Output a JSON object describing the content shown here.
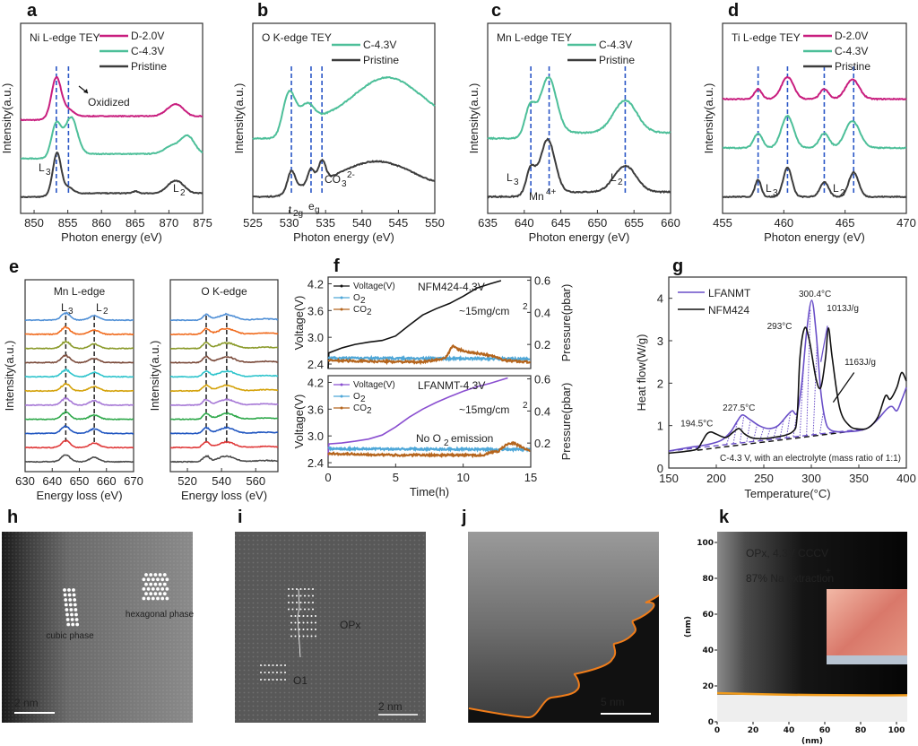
{
  "chart_data": [
    {
      "id": "a",
      "type": "line",
      "panel_label": "a",
      "title": "Ni L-edge TEY",
      "xlabel": "Photon energy (eV)",
      "ylabel": "Intensity(a.u.)",
      "xlim": [
        848,
        875
      ],
      "xticks": [
        850,
        855,
        860,
        865,
        870,
        875
      ],
      "legend": [
        "D-2.0V",
        "C-4.3V",
        "Pristine"
      ],
      "legend_position": "top-right",
      "colors": {
        "D-2.0V": "#c81d7e",
        "C-4.3V": "#4dbf99",
        "Pristine": "#3c3c3c"
      },
      "dashed_lines_x": [
        853.3,
        855.1
      ],
      "annotations": [
        "Oxidized",
        "L3",
        "L2"
      ],
      "series": [
        {
          "name": "D-2.0V",
          "offset": 2.0,
          "peaks": [
            [
              853.3,
              1.0,
              0.7
            ],
            [
              855.0,
              0.18,
              0.8
            ],
            [
              870.3,
              0.18,
              1.0
            ],
            [
              871.5,
              0.2,
              0.9
            ]
          ],
          "edge": [
            852,
            0.1
          ]
        },
        {
          "name": "C-4.3V",
          "offset": 1.0,
          "peaks": [
            [
              853.3,
              0.8,
              0.7
            ],
            [
              855.5,
              0.95,
              0.9
            ],
            [
              870.5,
              0.2,
              1.2
            ],
            [
              872.8,
              0.45,
              1.0
            ]
          ],
          "edge": [
            852.5,
            0.12
          ]
        },
        {
          "name": "Pristine",
          "offset": 0.0,
          "peaks": [
            [
              853.4,
              1.05,
              0.6
            ],
            [
              855.1,
              0.15,
              0.7
            ],
            [
              865.0,
              0.05,
              0.4
            ],
            [
              870.4,
              0.22,
              0.9
            ],
            [
              871.7,
              0.2,
              0.9
            ]
          ],
          "edge": [
            852,
            0.1
          ]
        }
      ]
    },
    {
      "id": "b",
      "type": "line",
      "panel_label": "b",
      "title": "O K-edge TEY",
      "xlabel": "Photon energy (eV)",
      "ylabel": "Intensity(a.u.)",
      "xlim": [
        525,
        550
      ],
      "xticks": [
        525,
        530,
        535,
        540,
        545,
        550
      ],
      "legend": [
        "C-4.3V",
        "Pristine"
      ],
      "legend_position": "top-right",
      "colors": {
        "C-4.3V": "#4dbf99",
        "Pristine": "#3c3c3c"
      },
      "dashed_lines_x": [
        530.3,
        533.0,
        534.5
      ],
      "annotations": [
        "t2g",
        "eg",
        "CO3 2-"
      ],
      "series": [
        {
          "name": "C-4.3V",
          "offset": 1.15,
          "peaks": [
            [
              530.0,
              0.6,
              0.8
            ],
            [
              532.5,
              0.3,
              0.9
            ],
            [
              543.5,
              0.85,
              4.5
            ]
          ],
          "edge": [
            529.0,
            0.35
          ]
        },
        {
          "name": "Pristine",
          "offset": 0.0,
          "peaks": [
            [
              530.3,
              0.35,
              0.5
            ],
            [
              533.0,
              0.3,
              0.45
            ],
            [
              534.5,
              0.4,
              0.5
            ],
            [
              542.0,
              0.55,
              5.0
            ]
          ],
          "edge": [
            529.5,
            0.15
          ]
        }
      ]
    },
    {
      "id": "c",
      "type": "line",
      "panel_label": "c",
      "title": "Mn L-edge TEY",
      "xlabel": "Photon energy (eV)",
      "ylabel": "Intensity(a.u.)",
      "xlim": [
        635,
        660
      ],
      "xticks": [
        635,
        640,
        645,
        650,
        655,
        660
      ],
      "legend": [
        "C-4.3V",
        "Pristine"
      ],
      "legend_position": "top-right",
      "colors": {
        "C-4.3V": "#4dbf99",
        "Pristine": "#3c3c3c"
      },
      "dashed_lines_x": [
        640.9,
        643.4,
        653.8
      ],
      "annotations": [
        "L3",
        "Mn4+",
        "L2"
      ],
      "series": [
        {
          "name": "C-4.3V",
          "offset": 1.0,
          "peaks": [
            [
              640.8,
              0.45,
              0.7
            ],
            [
              643.3,
              0.95,
              1.1
            ],
            [
              653.8,
              0.55,
              1.6
            ]
          ],
          "edge": [
            640,
            0.1
          ]
        },
        {
          "name": "Pristine",
          "offset": 0.0,
          "peaks": [
            [
              640.9,
              0.4,
              0.6
            ],
            [
              643.2,
              0.9,
              1.0
            ],
            [
              653.8,
              0.45,
              1.5
            ]
          ],
          "edge": [
            640,
            0.08
          ]
        }
      ]
    },
    {
      "id": "d",
      "type": "line",
      "panel_label": "d",
      "title": "Ti L-edge TEY",
      "xlabel": "Photon energy (eV)",
      "ylabel": "Intensity(a.u.)",
      "xlim": [
        455,
        470
      ],
      "xticks": [
        455,
        460,
        465,
        470
      ],
      "legend": [
        "D-2.0V",
        "C-4.3V",
        "Pristine"
      ],
      "legend_position": "top-right",
      "colors": {
        "D-2.0V": "#c81d7e",
        "C-4.3V": "#4dbf99",
        "Pristine": "#3c3c3c"
      },
      "dashed_lines_x": [
        457.9,
        460.3,
        463.3,
        465.7
      ],
      "annotations": [
        "L3",
        "L2"
      ],
      "series": [
        {
          "name": "D-2.0V",
          "offset": 2.0,
          "peaks": [
            [
              457.9,
              0.2,
              0.3
            ],
            [
              460.3,
              0.45,
              0.5
            ],
            [
              463.3,
              0.2,
              0.35
            ],
            [
              465.6,
              0.4,
              0.55
            ]
          ],
          "edge": [
            457.5,
            0.0
          ]
        },
        {
          "name": "C-4.3V",
          "offset": 1.0,
          "peaks": [
            [
              457.9,
              0.3,
              0.35
            ],
            [
              460.3,
              0.65,
              0.5
            ],
            [
              463.3,
              0.3,
              0.4
            ],
            [
              465.6,
              0.55,
              0.6
            ]
          ],
          "edge": [
            457.5,
            0.0
          ]
        },
        {
          "name": "Pristine",
          "offset": 0.0,
          "peaks": [
            [
              457.9,
              0.35,
              0.25
            ],
            [
              460.3,
              0.6,
              0.35
            ],
            [
              463.3,
              0.3,
              0.35
            ],
            [
              465.7,
              0.5,
              0.4
            ]
          ],
          "edge": [
            457.5,
            0.0
          ]
        }
      ]
    },
    {
      "id": "e1",
      "type": "line",
      "panel_label": "e",
      "title": "Mn L-edge",
      "xlabel": "Energy loss (eV)",
      "ylabel": "Intensity(a.u.)",
      "xlim": [
        630,
        670
      ],
      "xticks": [
        630,
        640,
        650,
        660,
        670
      ],
      "dashed_lines_x": [
        645,
        655.5
      ],
      "annotations": [
        "L3",
        "L2"
      ],
      "stack_colors": [
        "#4f8fd6",
        "#f06a1c",
        "#8a9a2a",
        "#7a4a3a",
        "#2ec4cc",
        "#d4a20a",
        "#a678d6",
        "#2ea84a",
        "#1f55c0",
        "#e03a3a",
        "#4a4a4a"
      ],
      "peaks": [
        [
          645,
          0.55,
          1.6
        ],
        [
          655.5,
          0.35,
          1.8
        ]
      ]
    },
    {
      "id": "e2",
      "type": "line",
      "panel_label": "",
      "title": "O K-edge",
      "xlabel": "Energy loss (eV)",
      "ylabel": "Intensity(a.u.)",
      "xlim": [
        510,
        573
      ],
      "xticks": [
        520,
        540,
        560
      ],
      "dashed_lines_x": [
        531,
        543
      ],
      "stack_colors": [
        "#4f8fd6",
        "#f06a1c",
        "#8a9a2a",
        "#7a4a3a",
        "#2ec4cc",
        "#d4a20a",
        "#a678d6",
        "#2ea84a",
        "#1f55c0",
        "#e03a3a",
        "#4a4a4a"
      ],
      "peaks": [
        [
          531,
          0.45,
          1.2
        ],
        [
          543,
          0.45,
          3.0
        ],
        [
          566,
          0.1,
          4.0
        ]
      ]
    },
    {
      "id": "f1",
      "type": "line",
      "panel_label": "f",
      "title": "NFM424-4.3V",
      "note": "~15mg/cm2",
      "xlabel": "Time(h)",
      "ylabel": "Voltage(V)",
      "y2label": "Pressure(pbar)",
      "xlim": [
        0,
        15
      ],
      "ylim": [
        2.3,
        4.35
      ],
      "y2lim": [
        0.05,
        0.62
      ],
      "yticks": [
        2.4,
        3.0,
        3.6,
        4.2
      ],
      "y2ticks": [
        0.2,
        0.4,
        0.6
      ],
      "legend": [
        "Voltage(V)",
        "O2",
        "CO2"
      ],
      "legend_position": "top-left",
      "colors": {
        "Voltage(V)": "#111111",
        "O2": "#4ea7d8",
        "CO2": "#b5651d"
      },
      "series": [
        {
          "name": "Voltage(V)",
          "axis": "left",
          "x": [
            0,
            0.05,
            1,
            2,
            3,
            4,
            5,
            6,
            7,
            8,
            9,
            10,
            11,
            12,
            12.8
          ],
          "y": [
            2.3,
            2.65,
            2.76,
            2.84,
            2.89,
            2.93,
            3.03,
            3.27,
            3.5,
            3.64,
            3.76,
            3.92,
            4.1,
            4.2,
            4.27
          ]
        },
        {
          "name": "O2",
          "axis": "right",
          "x": [
            0,
            15
          ],
          "y": [
            0.115,
            0.11
          ]
        },
        {
          "name": "CO2",
          "axis": "right",
          "x": [
            0,
            3,
            7,
            8.5,
            8.8,
            9.2,
            9.6,
            10.5,
            11.5,
            12.5,
            13,
            15
          ],
          "y": [
            0.1,
            0.095,
            0.09,
            0.11,
            0.13,
            0.19,
            0.17,
            0.15,
            0.14,
            0.12,
            0.1,
            0.09
          ]
        }
      ]
    },
    {
      "id": "f2",
      "type": "line",
      "panel_label": "",
      "title": "LFANMT-4.3V",
      "note": "~15mg/cm2",
      "annotation": "No O2 emission",
      "xlabel": "Time(h)",
      "ylabel": "Voltage(V)",
      "y2label": "Pressure(pbar)",
      "xlim": [
        0,
        15
      ],
      "ylim": [
        2.3,
        4.35
      ],
      "y2lim": [
        0.05,
        0.62
      ],
      "xticks": [
        0,
        5,
        10,
        15
      ],
      "yticks": [
        2.4,
        3.0,
        3.6,
        4.2
      ],
      "y2ticks": [
        0.2,
        0.4,
        0.6
      ],
      "legend": [
        "Voltage(V)",
        "O2",
        "CO2"
      ],
      "legend_position": "top-left",
      "colors": {
        "Voltage(V)": "#8a4fd0",
        "O2": "#4ea7d8",
        "CO2": "#b5651d"
      },
      "series": [
        {
          "name": "Voltage(V)",
          "axis": "left",
          "x": [
            0,
            0.05,
            1,
            2,
            3,
            4,
            5,
            6,
            7,
            8,
            9,
            10,
            11,
            12,
            13.3
          ],
          "y": [
            2.55,
            2.82,
            2.84,
            2.88,
            2.93,
            3.02,
            3.2,
            3.42,
            3.6,
            3.75,
            3.88,
            4.0,
            4.1,
            4.18,
            4.3
          ]
        },
        {
          "name": "O2",
          "axis": "right",
          "x": [
            0,
            15
          ],
          "y": [
            0.165,
            0.16
          ]
        },
        {
          "name": "CO2",
          "axis": "right",
          "x": [
            0,
            5,
            10,
            11.5,
            12,
            12.6,
            13.2,
            13.7,
            14.2,
            15
          ],
          "y": [
            0.135,
            0.125,
            0.125,
            0.125,
            0.14,
            0.15,
            0.19,
            0.2,
            0.18,
            0.15
          ]
        }
      ]
    },
    {
      "id": "g",
      "type": "line",
      "panel_label": "g",
      "xlabel": "Temperature(°C)",
      "ylabel": "Heat flow(W/g)",
      "xlim": [
        150,
        400
      ],
      "ylim": [
        0,
        4.5
      ],
      "xticks": [
        150,
        200,
        250,
        300,
        350,
        400
      ],
      "yticks": [
        0,
        1,
        2,
        3,
        4
      ],
      "legend": [
        "LFANMT",
        "NFM424"
      ],
      "legend_position": "top-left",
      "colors": {
        "LFANMT": "#6a4fc8",
        "NFM424": "#111111"
      },
      "annotations": [
        "300.4°C",
        "1013J/g",
        "293°C",
        "1163J/g",
        "227.5°C",
        "194.5°C"
      ],
      "footnote": "C-4.3 V, with an electrolyte (mass ratio of 1:1)",
      "series": [
        {
          "name": "LFANMT",
          "x": [
            150,
            170,
            190,
            205,
            215,
            222,
            227.5,
            235,
            245,
            255,
            265,
            275,
            280,
            285,
            290,
            295,
            300.4,
            305,
            310,
            315,
            320,
            330,
            340,
            350,
            360,
            370,
            380,
            385,
            390,
            395,
            400
          ],
          "y": [
            0.4,
            0.48,
            0.55,
            0.65,
            0.85,
            1.1,
            1.25,
            1.15,
            1.0,
            0.93,
            1.0,
            1.25,
            1.35,
            1.3,
            2.0,
            3.2,
            3.95,
            3.2,
            1.8,
            1.1,
            0.9,
            0.85,
            0.86,
            0.88,
            0.95,
            1.15,
            1.4,
            1.45,
            1.35,
            1.6,
            1.9
          ]
        },
        {
          "name": "NFM424",
          "x": [
            150,
            170,
            180,
            185,
            190,
            194.5,
            200,
            210,
            218,
            224,
            230,
            240,
            260,
            280,
            285,
            288,
            293,
            298,
            305,
            310,
            315,
            318,
            322,
            330,
            340,
            350,
            360,
            370,
            378,
            383,
            390,
            395,
            400
          ],
          "y": [
            0.35,
            0.4,
            0.45,
            0.62,
            0.8,
            0.85,
            0.8,
            0.72,
            0.85,
            0.93,
            0.8,
            0.7,
            0.72,
            0.85,
            1.2,
            2.6,
            3.3,
            3.0,
            2.1,
            1.9,
            2.6,
            3.3,
            2.6,
            1.4,
            1.0,
            0.92,
            0.95,
            1.2,
            1.7,
            1.62,
            1.9,
            2.25,
            2.05
          ]
        }
      ],
      "baselines": [
        {
          "name": "LFANMT",
          "x": [
            150,
            355
          ],
          "y": [
            0.4,
            0.92
          ]
        },
        {
          "name": "NFM424",
          "x": [
            180,
            355
          ],
          "y": [
            0.42,
            0.9
          ]
        }
      ]
    },
    {
      "id": "k",
      "type": "heatmap",
      "panel_label": "k",
      "title_lines": [
        "OPx, 4.3V CC+CV",
        "87% Na+ extraction"
      ],
      "xlabel": "(nm)",
      "ylabel": "(nm)",
      "xlim": [
        0,
        106
      ],
      "ylim": [
        0,
        106
      ],
      "xticks": [
        0,
        20,
        40,
        60,
        80,
        100
      ],
      "yticks": [
        0,
        20,
        40,
        60,
        80,
        100
      ],
      "interface_y_nm": 15
    }
  ],
  "images": {
    "h": {
      "panel_label": "h",
      "labels": [
        "cubic phase",
        "hexagonal phase"
      ],
      "scale_bar": "2 nm"
    },
    "i": {
      "panel_label": "i",
      "labels": [
        "OPx",
        "O1"
      ],
      "scale_bar": "2 nm"
    },
    "j": {
      "panel_label": "j",
      "scale_bar": "5 nm"
    }
  }
}
